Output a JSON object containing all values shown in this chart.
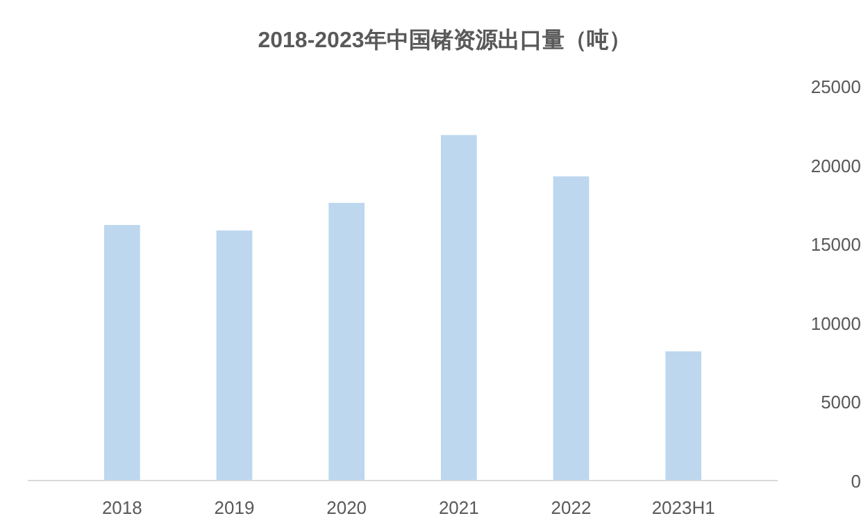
{
  "chart_data": {
    "type": "bar",
    "title": "2018-2023年中国锗资源出口量（吨）",
    "categories": [
      "2018",
      "2019",
      "2020",
      "2021",
      "2022",
      "2023H1"
    ],
    "values": [
      16200,
      15850,
      17600,
      21900,
      19280,
      8190
    ],
    "color": "#bdd7ee",
    "ylim": [
      0,
      25000
    ],
    "yticks": [
      0,
      5000,
      10000,
      15000,
      20000,
      25000
    ],
    "grid": false
  }
}
